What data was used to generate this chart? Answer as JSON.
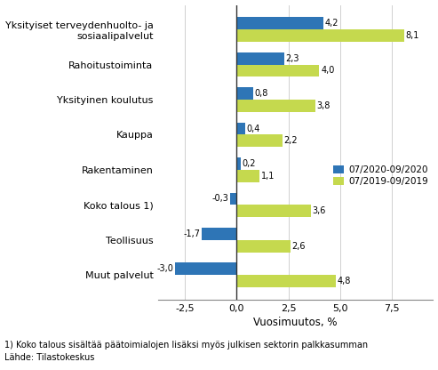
{
  "categories": [
    "Muut palvelut",
    "Teollisuus",
    "Koko talous 1)",
    "Rakentaminen",
    "Kauppa",
    "Yksityinen koulutus",
    "Rahoitustoiminta",
    "Yksityiset terveydenhuolto- ja\nsosiaalipalvelut"
  ],
  "series_2020": [
    -3.0,
    -1.7,
    -0.3,
    0.2,
    0.4,
    0.8,
    2.3,
    4.2
  ],
  "series_2019": [
    4.8,
    2.6,
    3.6,
    1.1,
    2.2,
    3.8,
    4.0,
    8.1
  ],
  "color_2020": "#2E75B6",
  "color_2019": "#C5D94E",
  "legend_2020": "07/2020-09/2020",
  "legend_2019": "07/2019-09/2019",
  "xlabel": "Vuosimuutos, %",
  "xlim": [
    -3.8,
    9.5
  ],
  "xticks": [
    -2.5,
    0.0,
    2.5,
    5.0,
    7.5
  ],
  "xtick_labels": [
    "-2,5",
    "0,0",
    "2,5",
    "5,0",
    "7,5"
  ],
  "footnote1": "1) Koko talous sisältää päätoimialojen lisäksi myös julkisen sektorin palkkasumman",
  "footnote2": "Lähde: Tilastokeskus",
  "bar_height": 0.35,
  "ytick_fontsize": 8,
  "xtick_fontsize": 8,
  "xlabel_fontsize": 8.5,
  "legend_fontsize": 7.5,
  "footnote_fontsize": 7,
  "value_fontsize": 7
}
